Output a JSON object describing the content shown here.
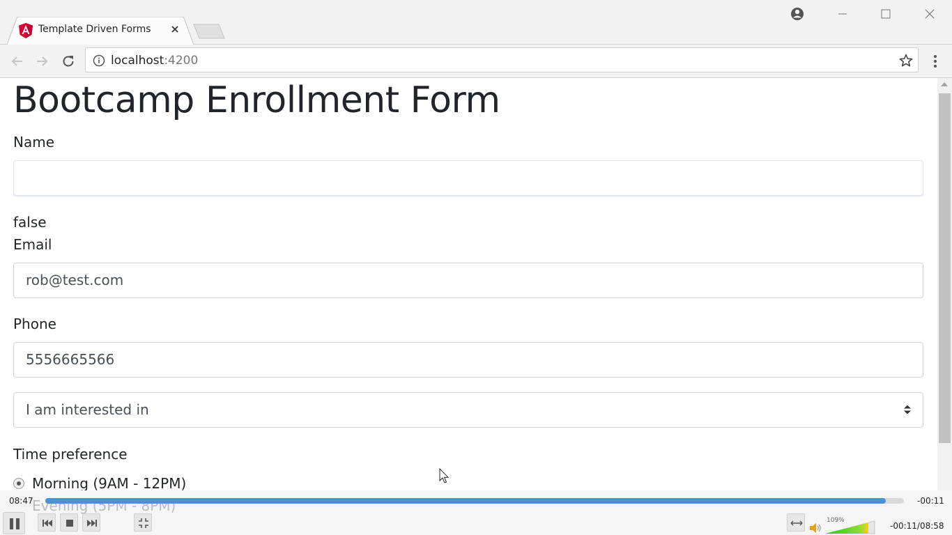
{
  "browser": {
    "tab_title": "Template Driven Forms",
    "url_host": "localhost",
    "url_port": ":4200",
    "favicon": "angular-icon"
  },
  "page": {
    "title": "Bootcamp Enrollment Form",
    "name_label": "Name",
    "name_value": "",
    "debug_value": "false",
    "email_label": "Email",
    "email_value": "rob@test.com",
    "phone_label": "Phone",
    "phone_value": "5556665566",
    "interest_select": "I am interested in",
    "time_pref_label": "Time preference",
    "time_options": [
      {
        "label": "Morning (9AM - 12PM)",
        "checked": true
      },
      {
        "label": "Evening (5PM - 8PM)",
        "checked": false
      }
    ]
  },
  "player": {
    "elapsed": "08:47",
    "remaining": "-00:11",
    "position_total": "-00:11/08:58",
    "progress_fraction": 0.979,
    "volume_label": "109%",
    "volume_fraction": 1.09
  },
  "colors": {
    "accent": "#4a90d9",
    "angular_red": "#dd0031",
    "chrome_bg": "#f2f2f2"
  }
}
